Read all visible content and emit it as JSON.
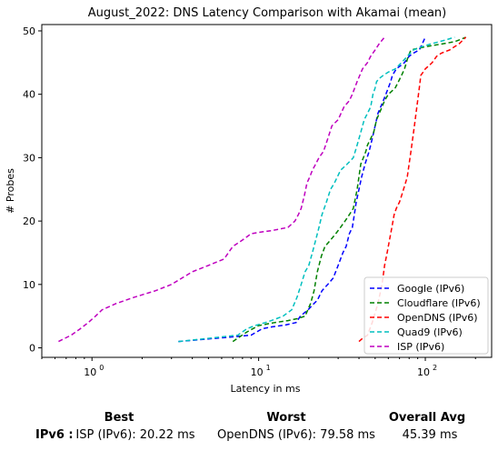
{
  "chart_data": {
    "type": "line",
    "title": "August_2022: DNS Latency Comparison with Akamai (mean)",
    "xlabel": "Latency in ms",
    "ylabel": "# Probes",
    "xscale": "log",
    "xlim": [
      0.5,
      250
    ],
    "ylim": [
      -1.5,
      51
    ],
    "x_ticks": [
      1,
      10,
      100
    ],
    "x_tick_labels": [
      "10",
      "10",
      "10"
    ],
    "x_tick_exponents": [
      "0",
      "1",
      "2"
    ],
    "y_ticks": [
      0,
      10,
      20,
      30,
      40,
      50
    ],
    "y_tick_labels": [
      "0",
      "10",
      "20",
      "30",
      "40",
      "50"
    ],
    "grid": false,
    "legend_position": "bottom-right",
    "series": [
      {
        "name": "Google (IPv6)",
        "color": "#0000ff",
        "x": [
          3.3,
          5.5,
          7.5,
          9,
          10.5,
          12,
          14.5,
          16.8,
          17.8,
          19.8,
          21.5,
          22.5,
          24,
          26,
          28,
          30,
          32,
          33.5,
          35,
          36.5,
          37.5,
          38.5,
          40,
          41.5,
          43.5,
          46,
          48,
          50,
          52,
          54,
          56,
          58,
          60,
          62,
          63.5,
          67,
          71,
          75,
          80,
          85,
          92,
          96,
          100
        ],
        "y": [
          1,
          1.5,
          1.8,
          2,
          3,
          3.3,
          3.6,
          4,
          5,
          6,
          7,
          7.5,
          9,
          10,
          11,
          13,
          15,
          16,
          18,
          19,
          21,
          23,
          25,
          27,
          29,
          31,
          33,
          35,
          37,
          38,
          39,
          40,
          41,
          42,
          43,
          44,
          44.5,
          45,
          46,
          46.5,
          47,
          48,
          49
        ]
      },
      {
        "name": "Cloudflare (IPv6)",
        "color": "#008000",
        "x": [
          7,
          8.5,
          10,
          12.5,
          15,
          17,
          19,
          20.5,
          21.5,
          22.5,
          23.8,
          25,
          27,
          29,
          31,
          33,
          35,
          37,
          39,
          41,
          42.5,
          44,
          45,
          47,
          49,
          51,
          53,
          55,
          57,
          60,
          63,
          66,
          69,
          72,
          75,
          77,
          79,
          82,
          100,
          130,
          150,
          165,
          175
        ],
        "y": [
          1,
          2.5,
          3.5,
          4,
          4.3,
          4.6,
          5,
          7,
          9,
          12,
          14.5,
          16,
          17,
          18,
          19,
          20,
          21,
          22,
          25,
          29,
          30,
          31,
          32,
          33,
          34,
          36,
          37,
          38,
          39,
          40,
          40.5,
          41,
          42,
          43,
          44,
          45,
          46,
          47,
          47.5,
          48,
          48.3,
          48.7,
          49
        ]
      },
      {
        "name": "OpenDNS (IPv6)",
        "color": "#ff0000",
        "x": [
          40,
          42,
          45,
          48,
          52,
          55,
          57,
          59,
          61,
          63,
          65,
          67,
          70,
          72,
          74,
          76,
          78,
          80,
          82,
          84,
          86,
          88,
          90,
          92,
          94,
          97,
          100,
          105,
          110,
          117,
          125,
          140,
          160,
          175
        ],
        "y": [
          1,
          1.5,
          2,
          4,
          7,
          10,
          13,
          15,
          17,
          19,
          21,
          22,
          23,
          24,
          25,
          26,
          27,
          29,
          31,
          33,
          35,
          37,
          39,
          41,
          43,
          43.5,
          44,
          44.5,
          45,
          46,
          46.5,
          47,
          48,
          49
        ]
      },
      {
        "name": "Quad9 (IPv6)",
        "color": "#00bfbf",
        "x": [
          3.3,
          5,
          7.5,
          8.5,
          9.5,
          11,
          12.5,
          14,
          15.8,
          17,
          18,
          19,
          20,
          21,
          22,
          23,
          24,
          25.5,
          27,
          28.5,
          31,
          34,
          37,
          39,
          41,
          43,
          45,
          47,
          48.5,
          50,
          51,
          53,
          56,
          60,
          66,
          72,
          78,
          85,
          95,
          110,
          130,
          150
        ],
        "y": [
          1,
          1.5,
          2,
          3,
          3.5,
          4,
          4.5,
          5,
          6,
          8,
          10,
          12,
          13,
          15,
          17,
          19,
          21,
          23,
          25,
          26,
          28,
          29,
          30,
          32,
          34,
          36,
          37,
          38,
          40,
          41,
          42,
          42.5,
          43,
          43.5,
          44,
          45,
          46,
          47,
          47.5,
          48,
          48.5,
          49
        ]
      },
      {
        "name": "ISP (IPv6)",
        "color": "#bf00bf",
        "x": [
          0.63,
          0.75,
          0.85,
          0.95,
          1.05,
          1.15,
          1.4,
          1.8,
          2.4,
          3,
          4,
          5,
          6.2,
          7,
          8,
          9,
          10.5,
          12,
          15,
          16.5,
          17.3,
          18,
          18.8,
          19.5,
          20.3,
          21,
          22,
          23,
          24.5,
          26,
          27.5,
          30,
          32.5,
          35,
          36.5,
          39,
          42,
          45,
          47,
          50,
          53,
          57
        ],
        "y": [
          1,
          2,
          3,
          4,
          5,
          6,
          7,
          8,
          9,
          10,
          12,
          13,
          14,
          16,
          17,
          18,
          18.3,
          18.5,
          19,
          20,
          21,
          22,
          24,
          26,
          27,
          28,
          29,
          30,
          31,
          33,
          35,
          36,
          38,
          39,
          40,
          42,
          44,
          45,
          46,
          47,
          48,
          49
        ]
      }
    ]
  },
  "stats": {
    "row_label": "IPv6 :",
    "best_header": "Best",
    "worst_header": "Worst",
    "avg_header": "Overall Avg",
    "best_value": "ISP (IPv6): 20.22 ms",
    "worst_value": "OpenDNS (IPv6): 79.58 ms",
    "avg_value": "45.39 ms"
  }
}
